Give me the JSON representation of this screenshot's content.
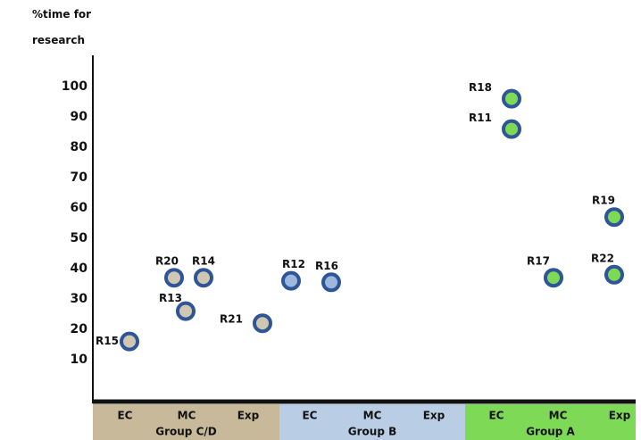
{
  "chart_data": {
    "type": "scatter",
    "ylabel_line1": "%time for",
    "ylabel_line2": "research",
    "yticks": [
      10,
      20,
      30,
      40,
      50,
      60,
      70,
      80,
      90,
      100
    ],
    "categories": [
      "EC",
      "MC",
      "Exp",
      "EC",
      "MC",
      "Exp",
      "EC",
      "MC",
      "Exp"
    ],
    "groups": [
      {
        "name": "Group C/D",
        "color": "#c7b99a",
        "point_color": "#cfc7b2"
      },
      {
        "name": "Group B",
        "color": "#b9cde5",
        "point_color": "#9db8dc"
      },
      {
        "name": "Group A",
        "color": "#7ed957",
        "point_color": "#7ed957"
      }
    ],
    "point_outline_color": "#2e5597",
    "points": [
      {
        "label": "R15",
        "group": 0,
        "category": "EC",
        "y": 16
      },
      {
        "label": "R20",
        "group": 0,
        "category": "MC",
        "y": 37
      },
      {
        "label": "R14",
        "group": 0,
        "category": "MC",
        "y": 37
      },
      {
        "label": "R13",
        "group": 0,
        "category": "MC",
        "y": 26
      },
      {
        "label": "R21",
        "group": 0,
        "category": "Exp",
        "y": 22
      },
      {
        "label": "R12",
        "group": 1,
        "category": "EC",
        "y": 36
      },
      {
        "label": "R16",
        "group": 1,
        "category": "EC",
        "y": 35.5
      },
      {
        "label": "R18",
        "group": 2,
        "category": "EC",
        "y": 96
      },
      {
        "label": "R11",
        "group": 2,
        "category": "EC",
        "y": 86
      },
      {
        "label": "R17",
        "group": 2,
        "category": "MC",
        "y": 37
      },
      {
        "label": "R19",
        "group": 2,
        "category": "Exp",
        "y": 57
      },
      {
        "label": "R22",
        "group": 2,
        "category": "Exp",
        "y": 38
      }
    ]
  }
}
